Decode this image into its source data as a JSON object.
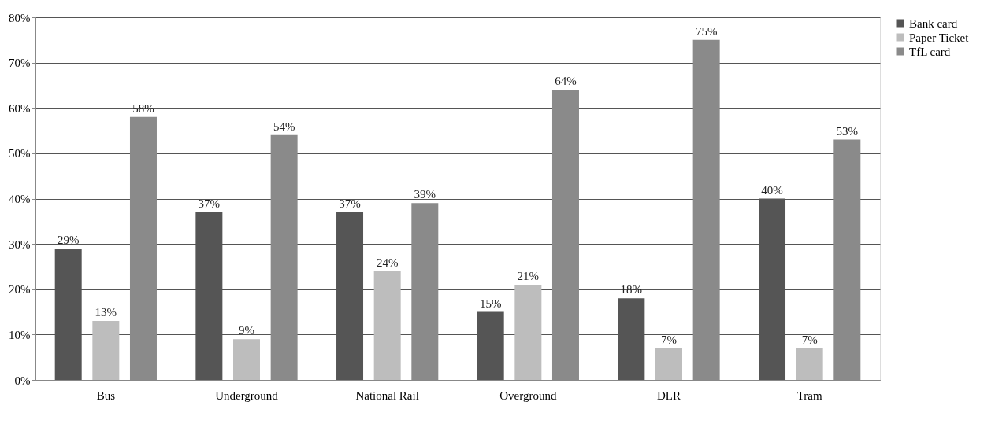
{
  "chart_data": {
    "type": "bar",
    "categories": [
      "Bus",
      "Underground",
      "National Rail",
      "Overground",
      "DLR",
      "Tram"
    ],
    "series": [
      {
        "name": "Bank card",
        "color": "#555555",
        "values": [
          29,
          37,
          37,
          15,
          18,
          40
        ],
        "value_labels": [
          "29%",
          "37%",
          "37%",
          "15%",
          "18%",
          "40%"
        ]
      },
      {
        "name": "Paper Ticket",
        "color": "#bdbdbd",
        "values": [
          13,
          9,
          24,
          21,
          7,
          7
        ],
        "value_labels": [
          "13%",
          "9%",
          "24%",
          "21%",
          "7%",
          "7%"
        ]
      },
      {
        "name": "TfL card",
        "color": "#8a8a8a",
        "values": [
          58,
          54,
          39,
          64,
          75,
          53
        ],
        "value_labels": [
          "58%",
          "54%",
          "39%",
          "64%",
          "75%",
          "53%"
        ]
      }
    ],
    "ylim": [
      0,
      80
    ],
    "yticks": [
      {
        "value": 0,
        "label": "0%"
      },
      {
        "value": 10,
        "label": "10%"
      },
      {
        "value": 20,
        "label": "20%"
      },
      {
        "value": 30,
        "label": "30%"
      },
      {
        "value": 40,
        "label": "40%"
      },
      {
        "value": 50,
        "label": "50%"
      },
      {
        "value": 60,
        "label": "60%"
      },
      {
        "value": 70,
        "label": "70%"
      },
      {
        "value": 80,
        "label": "80%"
      }
    ],
    "grid": "y",
    "legend": "right"
  }
}
